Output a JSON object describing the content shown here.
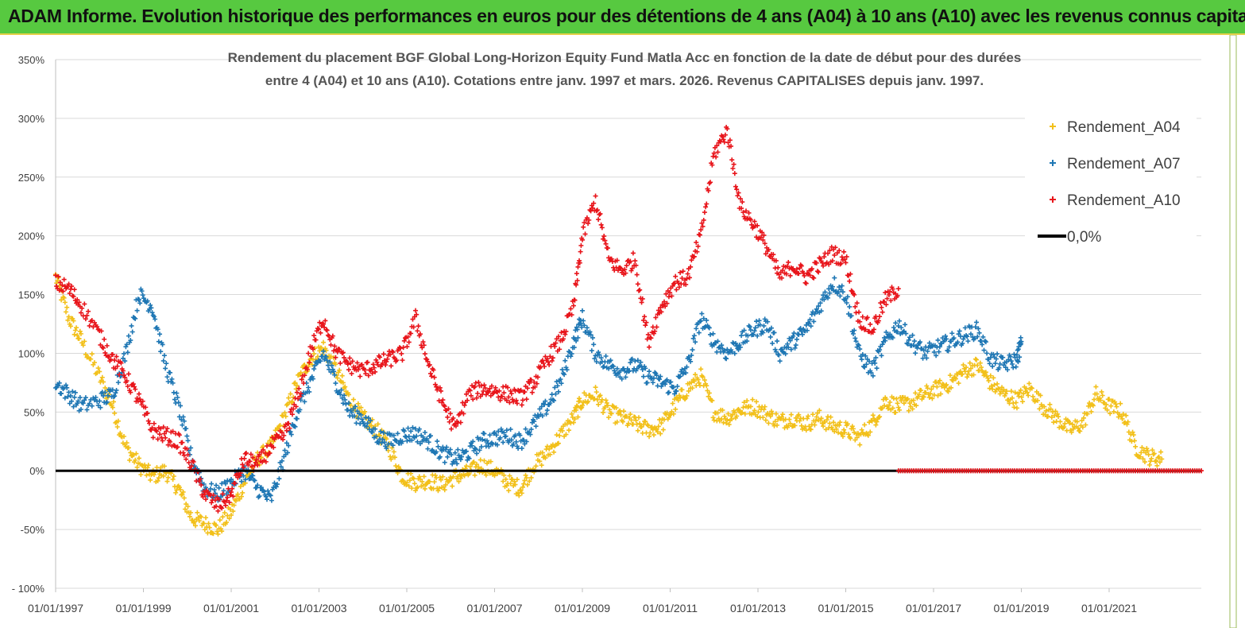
{
  "banner": {
    "title": "ADAM Informe. Evolution historique des performances en euros pour des détentions de 4 ans (A04) à 10 ans (A10) avec les revenus connus capitalisés"
  },
  "chart_data": {
    "type": "scatter",
    "title_line1": "Rendement du placement BGF Global Long-Horizon Equity Fund Matla Acc en fonction de la date de début pour des durées",
    "title_line2": "entre 4 (A04) et 10 ans (A10). Cotations entre janv. 1997 et mars. 2026. Revenus CAPITALISES depuis janv. 1997.",
    "y_ticks": [
      "- 100%",
      "-50%",
      "0%",
      "50%",
      "100%",
      "150%",
      "200%",
      "250%",
      "300%",
      "350%"
    ],
    "ylim": [
      -100,
      350
    ],
    "x_ticks": [
      "01/01/1997",
      "01/01/1999",
      "01/01/2001",
      "01/01/2003",
      "01/01/2005",
      "01/01/2007",
      "01/01/2009",
      "01/01/2011",
      "01/01/2013",
      "01/01/2015",
      "01/01/2017",
      "01/01/2019",
      "01/01/2021"
    ],
    "xlim": [
      1997.0,
      2023.1
    ],
    "grid": true,
    "legend_position": "top-right",
    "colors": {
      "A04": "#f2c01a",
      "A07": "#1f77b4",
      "A10": "#e8151b",
      "zero": "#000000"
    },
    "series": [
      {
        "name": "Rendement_A04",
        "x": [
          1997.0,
          1997.3,
          1997.6,
          1998.0,
          1998.3,
          1998.6,
          1998.9,
          1999.2,
          1999.5,
          1999.8,
          2000.1,
          2000.4,
          2000.7,
          2001.0,
          2001.3,
          2001.6,
          2001.9,
          2002.2,
          2002.5,
          2002.8,
          2003.1,
          2003.4,
          2003.7,
          2004.0,
          2004.3,
          2004.6,
          2004.9,
          2005.2,
          2005.5,
          2005.8,
          2006.1,
          2006.4,
          2006.7,
          2007.0,
          2007.3,
          2007.6,
          2007.9,
          2008.2,
          2008.5,
          2008.8,
          2009.0,
          2009.3,
          2009.6,
          2009.9,
          2010.2,
          2010.5,
          2010.8,
          2011.1,
          2011.4,
          2011.7,
          2012.0,
          2012.3,
          2012.6,
          2012.9,
          2013.2,
          2013.5,
          2013.8,
          2014.1,
          2014.4,
          2014.7,
          2015.0,
          2015.3,
          2015.6,
          2015.9,
          2016.2,
          2016.5,
          2016.8,
          2017.1,
          2017.4,
          2017.7,
          2018.0,
          2018.3,
          2018.6,
          2018.9,
          2019.2,
          2019.5,
          2019.8,
          2020.1,
          2020.4,
          2020.7,
          2021.0,
          2021.3,
          2021.6,
          2021.9,
          2022.2
        ],
        "y": [
          165,
          130,
          110,
          80,
          55,
          20,
          5,
          -5,
          0,
          -15,
          -40,
          -45,
          -50,
          -35,
          -10,
          10,
          20,
          45,
          75,
          95,
          105,
          85,
          60,
          45,
          35,
          20,
          -5,
          -10,
          -8,
          -12,
          -5,
          -2,
          5,
          0,
          -10,
          -15,
          5,
          15,
          30,
          45,
          60,
          65,
          50,
          45,
          40,
          35,
          38,
          55,
          70,
          80,
          50,
          45,
          52,
          55,
          48,
          42,
          45,
          40,
          45,
          38,
          35,
          28,
          40,
          60,
          55,
          58,
          65,
          70,
          75,
          85,
          90,
          75,
          65,
          60,
          70,
          55,
          45,
          35,
          40,
          65,
          55,
          50,
          20,
          12,
          10
        ]
      },
      {
        "name": "Rendement_A07",
        "x": [
          1997.0,
          1997.3,
          1997.6,
          1998.0,
          1998.3,
          1998.6,
          1998.9,
          1999.2,
          1999.5,
          1999.8,
          2000.1,
          2000.4,
          2000.7,
          2001.0,
          2001.3,
          2001.6,
          2001.9,
          2002.2,
          2002.5,
          2002.8,
          2003.1,
          2003.4,
          2003.7,
          2004.0,
          2004.3,
          2004.6,
          2004.9,
          2005.2,
          2005.5,
          2005.8,
          2006.1,
          2006.4,
          2006.7,
          2007.0,
          2007.3,
          2007.6,
          2007.9,
          2008.2,
          2008.5,
          2008.8,
          2009.0,
          2009.3,
          2009.6,
          2009.9,
          2010.2,
          2010.5,
          2010.8,
          2011.1,
          2011.4,
          2011.7,
          2012.0,
          2012.3,
          2012.6,
          2012.9,
          2013.2,
          2013.5,
          2013.8,
          2014.1,
          2014.4,
          2014.7,
          2015.0,
          2015.3,
          2015.6,
          2015.9,
          2016.2,
          2016.5,
          2016.8,
          2017.1,
          2017.4,
          2017.7,
          2018.0,
          2018.3,
          2018.6,
          2018.9,
          2019.0
        ],
        "y": [
          75,
          65,
          55,
          60,
          65,
          100,
          150,
          140,
          90,
          55,
          10,
          -15,
          -20,
          -10,
          0,
          -15,
          -25,
          10,
          50,
          75,
          100,
          75,
          50,
          45,
          30,
          25,
          30,
          32,
          25,
          15,
          10,
          15,
          25,
          28,
          30,
          25,
          40,
          55,
          75,
          110,
          130,
          100,
          90,
          85,
          90,
          80,
          75,
          70,
          90,
          130,
          110,
          100,
          110,
          120,
          125,
          100,
          110,
          120,
          140,
          160,
          150,
          100,
          85,
          110,
          125,
          110,
          100,
          105,
          110,
          115,
          120,
          95,
          90,
          95,
          110
        ]
      },
      {
        "name": "Rendement_A10",
        "x": [
          1997.0,
          1997.3,
          1997.6,
          1998.0,
          1998.3,
          1998.6,
          1998.9,
          1999.2,
          1999.5,
          1999.8,
          2000.1,
          2000.4,
          2000.7,
          2001.0,
          2001.3,
          2001.6,
          2001.9,
          2002.2,
          2002.5,
          2002.8,
          2003.1,
          2003.4,
          2003.7,
          2004.0,
          2004.3,
          2004.6,
          2004.9,
          2005.2,
          2005.5,
          2005.8,
          2006.1,
          2006.4,
          2006.7,
          2007.0,
          2007.3,
          2007.6,
          2007.9,
          2008.2,
          2008.5,
          2008.8,
          2009.0,
          2009.3,
          2009.6,
          2009.9,
          2010.2,
          2010.5,
          2010.8,
          2011.1,
          2011.4,
          2011.7,
          2012.0,
          2012.3,
          2012.6,
          2012.9,
          2013.2,
          2013.5,
          2013.8,
          2014.1,
          2014.4,
          2014.7,
          2015.0,
          2015.3,
          2015.6,
          2015.9,
          2016.2
        ],
        "y": [
          160,
          155,
          140,
          115,
          95,
          80,
          60,
          35,
          30,
          25,
          5,
          -20,
          -30,
          -20,
          10,
          5,
          20,
          30,
          60,
          100,
          130,
          100,
          90,
          85,
          90,
          95,
          100,
          130,
          90,
          60,
          35,
          65,
          70,
          68,
          65,
          62,
          75,
          95,
          110,
          140,
          200,
          230,
          180,
          170,
          180,
          110,
          140,
          160,
          165,
          200,
          270,
          290,
          225,
          210,
          190,
          165,
          175,
          165,
          175,
          185,
          180,
          130,
          120,
          145,
          155
        ]
      },
      {
        "name": "Rendement_A10",
        "role": "zero-tail",
        "x_range": [
          2016.2,
          2023.1
        ],
        "y": 0
      }
    ],
    "zero_line_label": "0,0%"
  }
}
